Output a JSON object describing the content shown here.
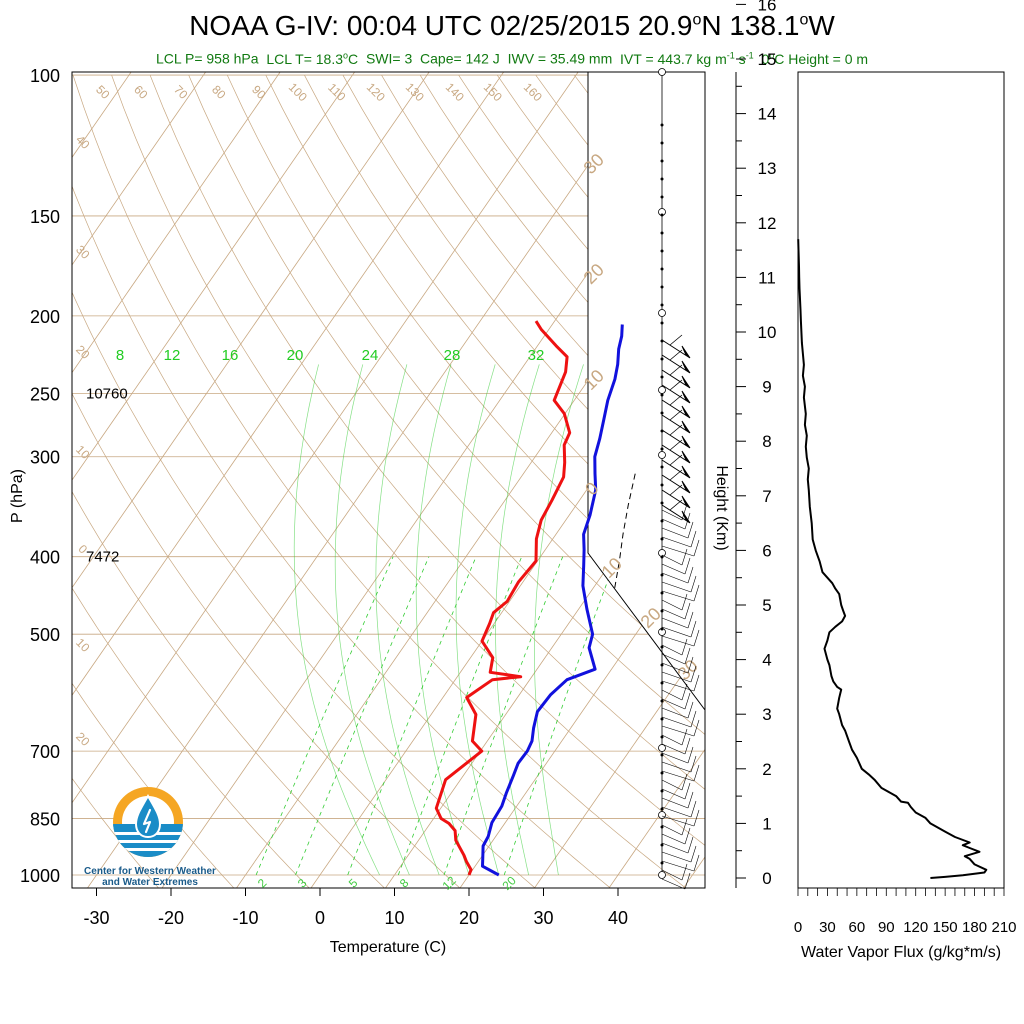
{
  "title_parts": [
    "NOAA G-IV: 00:04 UTC 02/25/2015  20.9",
    "o",
    "N 138.1",
    "o",
    "W"
  ],
  "subtitle": {
    "lcl_p": "LCL P= 958 hPa",
    "lcl_t_prefix": "LCL T= 18.3",
    "lcl_t_sup": "o",
    "lcl_t_suffix": "C",
    "swi": "SWI= 3",
    "cape": "Cape= 142 J",
    "iwv": "IWV = 35.49 mm",
    "ivt_prefix": "IVT = 443.7 kg m",
    "ivt_sup1": "-1",
    "ivt_mid": " s",
    "ivt_sup2": "-1",
    "zero_height_prefix": "0",
    "zero_height_sup": "o",
    "zero_height_suffix": "C Height = 0 m"
  },
  "colors": {
    "temperature": "#ee1111",
    "dewpoint": "#ee1111",
    "wetbulb": "#1111dd",
    "isotherm": "#c8a882",
    "dry_adiabat": "#c8a882",
    "mixing_ratio": "#33cc33",
    "moist_adiabat": "#33cc33",
    "subtitle": "#117a11",
    "logo_orange": "#f5a623",
    "logo_blue": "#1a8cc7"
  },
  "logo": {
    "line1": "Center for Western Weather",
    "line2": "and Water Extremes"
  },
  "chart_data": [
    {
      "type": "line",
      "subtype": "skew-t log-p",
      "xlabel": "Temperature (C)",
      "ylabel": "P (hPa)",
      "x_ticks": [
        -30,
        -20,
        -10,
        0,
        10,
        20,
        30,
        40
      ],
      "y_ticks": [
        100,
        150,
        200,
        250,
        300,
        400,
        500,
        700,
        850,
        1000
      ],
      "ylog": true,
      "height_labels": [
        {
          "p": 250,
          "text": "10760"
        },
        {
          "p": 400,
          "text": "7472"
        }
      ],
      "mixing_ratio_labels_top": [
        "8",
        "12",
        "16",
        "20",
        "24",
        "28",
        "32"
      ],
      "mixing_ratio_labels_bottom": [
        "2",
        "3",
        "5",
        "8",
        "12",
        "20"
      ],
      "isotherm_labels_top": [
        "50",
        "60",
        "70",
        "80",
        "90",
        "100",
        "110",
        "120",
        "130",
        "140",
        "150",
        "160"
      ],
      "isotherm_labels_left": [
        "40",
        "30",
        "20",
        "10",
        "0",
        "10",
        "20"
      ],
      "isotherm_labels_right": [
        "30",
        "20",
        "10",
        "0",
        "10",
        "20",
        "30"
      ],
      "series": [
        {
          "name": "temperature",
          "points": [
            [
              20,
              1000
            ],
            [
              19.8,
              985
            ],
            [
              18.4,
              962
            ],
            [
              17.5,
              945
            ],
            [
              15,
              905
            ],
            [
              14,
              880
            ],
            [
              12.5,
              862
            ],
            [
              11,
              850
            ],
            [
              9.4,
              825
            ],
            [
              8,
              760
            ],
            [
              10.2,
              700
            ],
            [
              8,
              680
            ],
            [
              6,
              630
            ],
            [
              3.2,
              600
            ],
            [
              5,
              570
            ],
            [
              8.5,
              565
            ],
            [
              4,
              558
            ],
            [
              3,
              535
            ],
            [
              0,
              510
            ],
            [
              -0.6,
              485
            ],
            [
              -1.1,
              470
            ],
            [
              -0.3,
              455
            ],
            [
              -0.6,
              430
            ],
            [
              -0.2,
              405
            ],
            [
              -2.2,
              380
            ],
            [
              -3.3,
              360
            ],
            [
              -3.7,
              340
            ],
            [
              -4.3,
              318
            ],
            [
              -5.5,
              305
            ],
            [
              -7.2,
              290
            ],
            [
              -7.6,
              280
            ],
            [
              -10.1,
              265
            ],
            [
              -12.7,
              255
            ],
            [
              -13.8,
              235
            ],
            [
              -15,
              225
            ],
            [
              -17.5,
              218
            ],
            [
              -21,
              208
            ],
            [
              -22.5,
              203
            ]
          ]
        },
        {
          "name": "wetbulb",
          "points": [
            [
              24,
              1000
            ],
            [
              21,
              975
            ],
            [
              20.2,
              950
            ],
            [
              19.2,
              920
            ],
            [
              19,
              895
            ],
            [
              18.2,
              860
            ],
            [
              18,
              820
            ],
            [
              17.4,
              790
            ],
            [
              16.7,
              750
            ],
            [
              16.2,
              725
            ],
            [
              16.3,
              700
            ],
            [
              16,
              680
            ],
            [
              15,
              655
            ],
            [
              14,
              625
            ],
            [
              14.2,
              595
            ],
            [
              15,
              570
            ],
            [
              17.8,
              553
            ],
            [
              15,
              520
            ],
            [
              14.2,
              500
            ],
            [
              11.1,
              465
            ],
            [
              8.4,
              435
            ],
            [
              6.6,
              410
            ],
            [
              5.2,
              392
            ],
            [
              3.7,
              375
            ],
            [
              2.8,
              355
            ],
            [
              1.2,
              330
            ],
            [
              -0.4,
              315
            ],
            [
              -2,
              300
            ],
            [
              -3,
              285
            ],
            [
              -4.2,
              270
            ],
            [
              -5.5,
              255
            ],
            [
              -6.5,
              240
            ],
            [
              -7.5,
              230
            ],
            [
              -8.8,
              220
            ],
            [
              -9.6,
              212
            ],
            [
              -10.6,
              205
            ]
          ]
        },
        {
          "name": "parcel",
          "points": [
            [
              5,
              315
            ],
            [
              7,
              345
            ],
            [
              9,
              375
            ],
            [
              11,
              405
            ],
            [
              13,
              440
            ]
          ]
        }
      ]
    },
    {
      "type": "line",
      "title": "",
      "xlabel": "Water Vapor Flux (g/kg*m/s)",
      "ylabel": "Height (Km)",
      "x_ticks": [
        0,
        30,
        60,
        90,
        120,
        150,
        180,
        210
      ],
      "x_tick_labels": [
        "0",
        "30",
        "60",
        "90",
        "120",
        "150",
        "180",
        "210"
      ],
      "y_ticks": [
        0,
        1,
        2,
        3,
        4,
        5,
        6,
        7,
        8,
        9,
        10,
        11,
        12,
        13,
        14,
        15,
        16
      ],
      "xlim": [
        0,
        210
      ],
      "ylim": [
        -0.3,
        16.3
      ],
      "series": [
        {
          "name": "water_vapor_flux",
          "points": [
            [
              135,
              0
            ],
            [
              150,
              0.02
            ],
            [
              168,
              0.05
            ],
            [
              190,
              0.1
            ],
            [
              192,
              0.15
            ],
            [
              180,
              0.25
            ],
            [
              175,
              0.35
            ],
            [
              170,
              0.4
            ],
            [
              185,
              0.48
            ],
            [
              175,
              0.55
            ],
            [
              168,
              0.6
            ],
            [
              175,
              0.65
            ],
            [
              160,
              0.75
            ],
            [
              150,
              0.85
            ],
            [
              135,
              1.0
            ],
            [
              130,
              1.1
            ],
            [
              120,
              1.2
            ],
            [
              115,
              1.3
            ],
            [
              112,
              1.38
            ],
            [
              105,
              1.4
            ],
            [
              100,
              1.5
            ],
            [
              90,
              1.6
            ],
            [
              85,
              1.65
            ],
            [
              78,
              1.8
            ],
            [
              72,
              1.9
            ],
            [
              65,
              2.0
            ],
            [
              60,
              2.2
            ],
            [
              55,
              2.35
            ],
            [
              52,
              2.5
            ],
            [
              48,
              2.7
            ],
            [
              45,
              2.8
            ],
            [
              42,
              3.0
            ],
            [
              40,
              3.1
            ],
            [
              42,
              3.3
            ],
            [
              44,
              3.45
            ],
            [
              40,
              3.5
            ],
            [
              36,
              3.6
            ],
            [
              34,
              3.7
            ],
            [
              32,
              3.9
            ],
            [
              30,
              4.0
            ],
            [
              27,
              4.2
            ],
            [
              30,
              4.35
            ],
            [
              32,
              4.5
            ],
            [
              38,
              4.6
            ],
            [
              45,
              4.7
            ],
            [
              48,
              4.8
            ],
            [
              46,
              4.9
            ],
            [
              44,
              5.0
            ],
            [
              42,
              5.2
            ],
            [
              38,
              5.3
            ],
            [
              35,
              5.4
            ],
            [
              30,
              5.5
            ],
            [
              25,
              5.6
            ],
            [
              22,
              5.8
            ],
            [
              18,
              6.0
            ],
            [
              15,
              6.2
            ],
            [
              14,
              6.5
            ],
            [
              12,
              6.8
            ],
            [
              11,
              7.1
            ],
            [
              10,
              7.3
            ],
            [
              11,
              7.5
            ],
            [
              9,
              7.7
            ],
            [
              8,
              7.9
            ],
            [
              9,
              8.1
            ],
            [
              7,
              8.3
            ],
            [
              8,
              8.5
            ],
            [
              6,
              8.8
            ],
            [
              7,
              9.0
            ],
            [
              5,
              9.2
            ],
            [
              6,
              9.4
            ],
            [
              5,
              9.6
            ],
            [
              4,
              9.8
            ],
            [
              3.5,
              10.0
            ],
            [
              3,
              10.2
            ],
            [
              2.5,
              10.4
            ],
            [
              2,
              10.6
            ],
            [
              1.5,
              10.8
            ],
            [
              1.2,
              11.0
            ],
            [
              1,
              11.2
            ],
            [
              0.5,
              11.5
            ],
            [
              0.2,
              11.7
            ]
          ]
        }
      ]
    }
  ]
}
